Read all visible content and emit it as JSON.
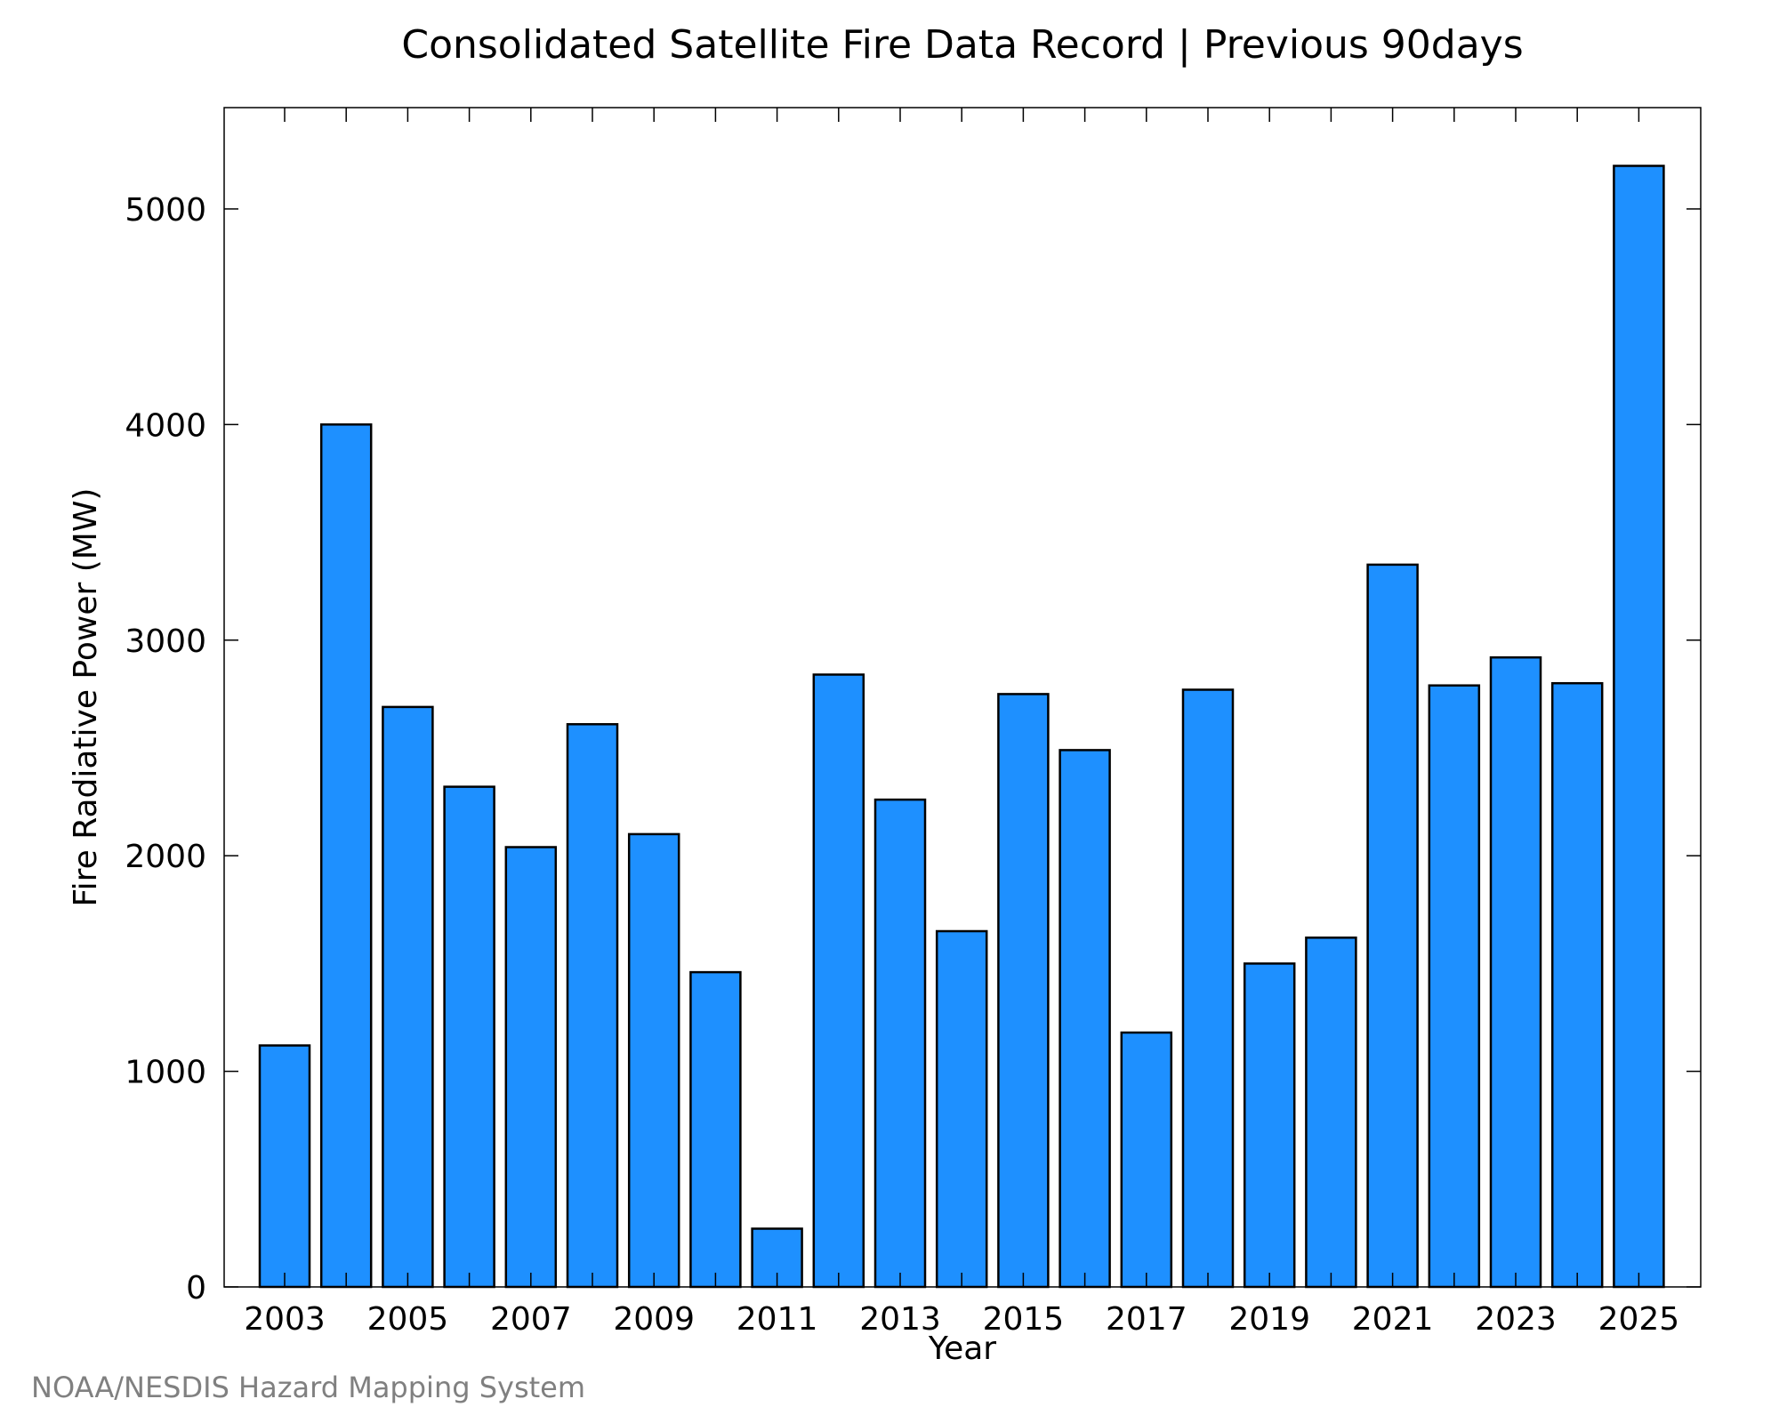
{
  "chart_data": {
    "type": "bar",
    "title": "Consolidated Satellite Fire Data Record | Previous 90days",
    "xlabel": "Year",
    "ylabel": "Fire Radiative Power (MW)",
    "categories": [
      "2003",
      "2004",
      "2005",
      "2006",
      "2007",
      "2008",
      "2009",
      "2010",
      "2011",
      "2012",
      "2013",
      "2014",
      "2015",
      "2016",
      "2017",
      "2018",
      "2019",
      "2020",
      "2021",
      "2022",
      "2023",
      "2024",
      "2025"
    ],
    "values": [
      1120,
      4000,
      2690,
      2320,
      2040,
      2610,
      2100,
      1460,
      270,
      2840,
      2260,
      1650,
      2750,
      2490,
      1180,
      2770,
      1500,
      1620,
      3350,
      2790,
      2920,
      2800,
      5200
    ],
    "x_tick_labels": [
      "2003",
      "2005",
      "2007",
      "2009",
      "2011",
      "2013",
      "2015",
      "2017",
      "2019",
      "2021",
      "2023",
      "2025"
    ],
    "y_ticks": [
      0,
      1000,
      2000,
      3000,
      4000,
      5000
    ],
    "ylim": [
      0,
      5470
    ],
    "grid": false,
    "legend": "none",
    "bar_color": "#1e90ff",
    "bar_edge_color": "#000000"
  },
  "footer": {
    "credit": "NOAA/NESDIS Hazard Mapping System"
  }
}
